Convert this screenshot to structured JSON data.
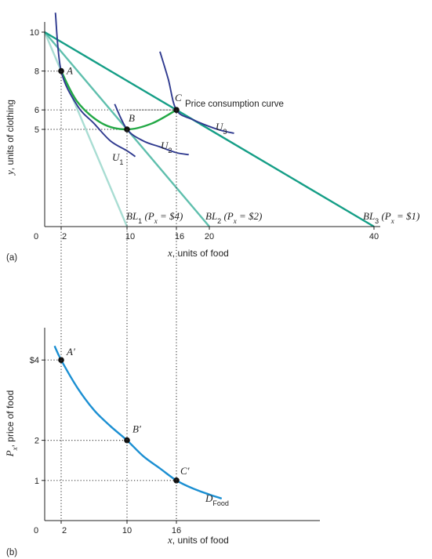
{
  "colors": {
    "budget_line_dark": "#159e86",
    "budget_line_mid": "#5fbfad",
    "budget_line_light": "#a9ddd3",
    "indifference_curve": "#2f3a8f",
    "pcc_curve": "#22a845",
    "demand_curve": "#1b8fd2",
    "axis": "#222222"
  },
  "chart_data": [
    {
      "panel_label": "(a)",
      "type": "line",
      "xlabel_var": "x",
      "xlabel_rest": ", units of food",
      "ylabel_var": "y",
      "ylabel_rest": ", units of clothing",
      "xlim": [
        0,
        43
      ],
      "ylim": [
        0,
        11
      ],
      "x_ticks": [
        "0",
        "2",
        "10",
        "16",
        "20",
        "40"
      ],
      "y_ticks": [
        "5",
        "6",
        "8",
        "10"
      ],
      "budget_lines": [
        {
          "name": "BL₁ (Pₓ = $4)",
          "label_main": "BL",
          "label_sub": "1",
          "label_rest": "(P",
          "label_px_sub": "x",
          "label_end": " = $4)",
          "y_intercept": 10,
          "x_intercept": 10
        },
        {
          "name": "BL₂ (Pₓ = $2)",
          "label_main": "BL",
          "label_sub": "2",
          "label_rest": "(P",
          "label_px_sub": "x",
          "label_end": " = $2)",
          "y_intercept": 10,
          "x_intercept": 20
        },
        {
          "name": "BL₃ (Pₓ = $1)",
          "label_main": "BL",
          "label_sub": "3",
          "label_rest": "(P",
          "label_px_sub": "x",
          "label_end": " = $1)",
          "y_intercept": 10,
          "x_intercept": 40
        }
      ],
      "indifference_curves": [
        {
          "main": "U",
          "sub": "1",
          "points": [
            [
              1.3,
              11.0
            ],
            [
              2,
              8
            ],
            [
              4,
              6.2
            ],
            [
              6,
              5.3
            ],
            [
              8,
              4.4
            ],
            [
              10,
              3.9
            ],
            [
              11,
              3.6
            ]
          ]
        },
        {
          "main": "U",
          "sub": "2",
          "points": [
            [
              8.5,
              6.3
            ],
            [
              10,
              5
            ],
            [
              12,
              4.4
            ],
            [
              14,
              4.1
            ],
            [
              16,
              3.8
            ],
            [
              17.5,
              3.7
            ]
          ]
        },
        {
          "main": "U",
          "sub": "3",
          "points": [
            [
              14,
              9.0
            ],
            [
              15,
              7.6
            ],
            [
              16,
              6
            ],
            [
              18,
              5.5
            ],
            [
              21,
              5.0
            ],
            [
              23,
              4.8
            ]
          ]
        }
      ],
      "price_consumption_curve": {
        "name": "Price consumption curve",
        "points": [
          [
            2,
            8
          ],
          [
            4,
            6.4
          ],
          [
            7,
            5.3
          ],
          [
            10,
            5
          ],
          [
            13,
            5.3
          ],
          [
            16,
            6
          ]
        ]
      },
      "points": [
        {
          "label": "A",
          "x": 2,
          "y": 8
        },
        {
          "label": "B",
          "x": 10,
          "y": 5
        },
        {
          "label": "C",
          "x": 16,
          "y": 6
        }
      ]
    },
    {
      "panel_label": "(b)",
      "type": "line",
      "xlabel_var": "x",
      "xlabel_rest": ", units of food",
      "ylabel_var": "P",
      "ylabel_sub": "x",
      "ylabel_rest": ", price of food",
      "xlim": [
        0,
        43
      ],
      "ylim": [
        0,
        4.5
      ],
      "x_ticks": [
        "0",
        "2",
        "10",
        "16"
      ],
      "y_ticks": [
        "1",
        "2",
        "$4"
      ],
      "series": [
        {
          "name": "D_Food",
          "main": "D",
          "sub": "Food",
          "points": [
            [
              1.2,
              4.35
            ],
            [
              2,
              4
            ],
            [
              4,
              3.3
            ],
            [
              6,
              2.75
            ],
            [
              8,
              2.35
            ],
            [
              10,
              2
            ],
            [
              12,
              1.6
            ],
            [
              14,
              1.3
            ],
            [
              16,
              1
            ],
            [
              18,
              0.8
            ],
            [
              20,
              0.65
            ],
            [
              21.5,
              0.55
            ]
          ]
        }
      ],
      "points": [
        {
          "label": "A′",
          "x": 2,
          "y": 4
        },
        {
          "label": "B′",
          "x": 10,
          "y": 2
        },
        {
          "label": "C′",
          "x": 16,
          "y": 1
        }
      ]
    }
  ]
}
